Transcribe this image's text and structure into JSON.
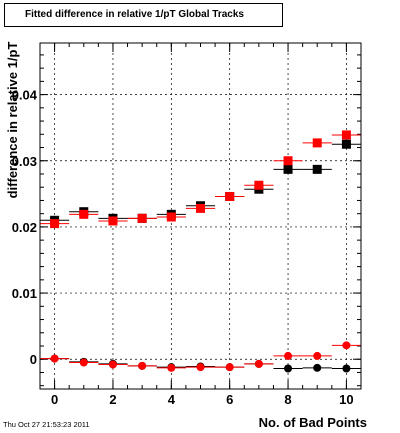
{
  "timestamp": "Thu Oct 27 21:53:23 2011",
  "colors": {
    "black": "#000000",
    "red": "#ff0000"
  },
  "chart_data": {
    "type": "scatter",
    "title": "Fitted difference in relative 1/pT  Global Tracks",
    "xlabel": "No. of Bad Points",
    "ylabel": "difference in relative 1/pT",
    "xlim": [
      -0.5,
      10.5
    ],
    "ylim": [
      -0.0045,
      0.0478
    ],
    "x_ticks": [
      0,
      2,
      4,
      6,
      8,
      10
    ],
    "y_ticks": [
      0,
      0.01,
      0.02,
      0.03,
      0.04
    ],
    "y_tick_labels": [
      "0",
      "0.01",
      "0.02",
      "0.03",
      "0.04"
    ],
    "grid": true,
    "legend": "none",
    "x_error": 0.5,
    "series": [
      {
        "marker": "square",
        "color": "#000000",
        "x": [
          0,
          1,
          2,
          3,
          4,
          5,
          6,
          7,
          8,
          9,
          10
        ],
        "y": [
          0.021,
          0.0223,
          0.0213,
          0.0213,
          0.0219,
          0.0232,
          0.0246,
          0.0257,
          0.0287,
          0.0287,
          0.0325
        ]
      },
      {
        "marker": "square",
        "color": "#ff0000",
        "x": [
          0,
          1,
          2,
          3,
          4,
          5,
          6,
          7,
          8,
          9,
          10
        ],
        "y": [
          0.0205,
          0.0219,
          0.0209,
          0.0213,
          0.0215,
          0.0228,
          0.0246,
          0.0263,
          0.03,
          0.0327,
          0.0339
        ]
      },
      {
        "marker": "circle",
        "color": "#000000",
        "x": [
          0,
          1,
          2,
          3,
          4,
          5,
          6,
          7,
          8,
          9,
          10
        ],
        "y": [
          0.0001,
          -0.0004,
          -0.0007,
          -0.001,
          -0.0012,
          -0.0011,
          -0.0012,
          -0.0007,
          -0.0014,
          -0.0013,
          -0.0014
        ]
      },
      {
        "marker": "circle",
        "color": "#ff0000",
        "x": [
          0,
          1,
          2,
          3,
          4,
          5,
          6,
          7,
          8,
          9,
          10
        ],
        "y": [
          0.0001,
          -0.0005,
          -0.0008,
          -0.001,
          -0.0013,
          -0.0012,
          -0.0012,
          -0.0007,
          0.0005,
          0.0005,
          0.0021
        ]
      }
    ]
  }
}
